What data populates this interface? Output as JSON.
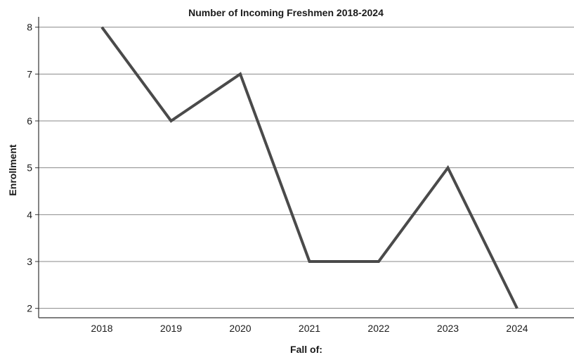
{
  "chart_data": {
    "type": "line",
    "title": "Number of Incoming Freshmen 2018-2024",
    "xlabel": "Fall of:",
    "ylabel": "Enrollment",
    "categories": [
      "2018",
      "2019",
      "2020",
      "2021",
      "2022",
      "2023",
      "2024"
    ],
    "series": [
      {
        "values": [
          8,
          6,
          7,
          3,
          3,
          5,
          2
        ]
      }
    ],
    "yticks": [
      "2",
      "3",
      "4",
      "5",
      "6",
      "7",
      "8"
    ],
    "ylim": [
      1.8,
      8.1
    ],
    "grid": true,
    "legend": "none",
    "colors": {
      "line": "#4a4a4a",
      "grid": "#8a8a8a",
      "axis": "#333333"
    }
  }
}
